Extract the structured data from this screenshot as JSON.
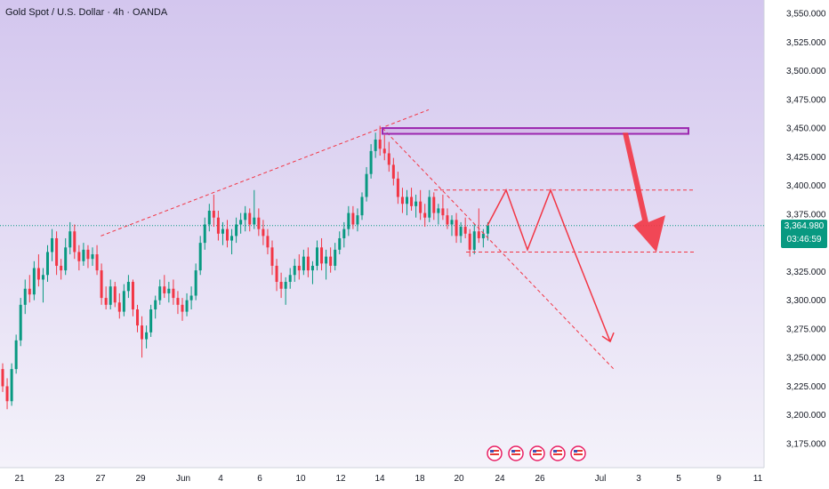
{
  "header": {
    "title": "Gold Spot / U.S. Dollar · 4h · OANDA"
  },
  "price_tag": {
    "price": "3,364.980",
    "countdown": "03:46:59"
  },
  "colors": {
    "up": "#089981",
    "down": "#f23645",
    "accent_zone": "#9c27b0",
    "background_top": "#d3c6ee",
    "background_bottom": "#f4f2fa",
    "projection": "#f23645",
    "price_line": "#089981"
  },
  "event_icons": [
    "us-flag-icon",
    "us-flag-icon",
    "us-flag-icon",
    "us-flag-icon",
    "us-flag-icon"
  ],
  "chart_data": {
    "type": "candlestick",
    "symbol": "XAUUSD",
    "timeframe": "4h",
    "ylim": [
      3160,
      3562
    ],
    "y_ticks": [
      "3,550.000",
      "3,525.000",
      "3,500.000",
      "3,475.000",
      "3,450.000",
      "3,425.000",
      "3,400.000",
      "3,375.000",
      "3,350.000",
      "3,325.000",
      "3,300.000",
      "3,275.000",
      "3,250.000",
      "3,225.000",
      "3,200.000",
      "3,175.000"
    ],
    "x_ticks": [
      "21",
      "23",
      "27",
      "29",
      "Jun",
      "4",
      "6",
      "10",
      "12",
      "14",
      "18",
      "20",
      "24",
      "26",
      "Jul",
      "3",
      "5",
      "9",
      "11"
    ],
    "last_price": 3364.98,
    "ohlc": [
      [
        3240,
        3245,
        3220,
        3225
      ],
      [
        3225,
        3232,
        3205,
        3212
      ],
      [
        3212,
        3245,
        3208,
        3240
      ],
      [
        3240,
        3270,
        3236,
        3265
      ],
      [
        3265,
        3302,
        3260,
        3296
      ],
      [
        3296,
        3318,
        3288,
        3310
      ],
      [
        3310,
        3322,
        3298,
        3305
      ],
      [
        3305,
        3334,
        3300,
        3328
      ],
      [
        3328,
        3340,
        3312,
        3318
      ],
      [
        3318,
        3328,
        3298,
        3322
      ],
      [
        3322,
        3348,
        3316,
        3342
      ],
      [
        3342,
        3362,
        3334,
        3354
      ],
      [
        3354,
        3360,
        3322,
        3330
      ],
      [
        3330,
        3336,
        3318,
        3326
      ],
      [
        3326,
        3354,
        3322,
        3346
      ],
      [
        3346,
        3368,
        3340,
        3360
      ],
      [
        3360,
        3366,
        3336,
        3342
      ],
      [
        3342,
        3348,
        3326,
        3334
      ],
      [
        3334,
        3350,
        3330,
        3344
      ],
      [
        3344,
        3348,
        3328,
        3336
      ],
      [
        3336,
        3346,
        3330,
        3340
      ],
      [
        3340,
        3348,
        3322,
        3326
      ],
      [
        3326,
        3332,
        3296,
        3302
      ],
      [
        3302,
        3312,
        3292,
        3296
      ],
      [
        3296,
        3318,
        3292,
        3312
      ],
      [
        3312,
        3316,
        3294,
        3298
      ],
      [
        3298,
        3306,
        3284,
        3290
      ],
      [
        3290,
        3314,
        3286,
        3308
      ],
      [
        3308,
        3322,
        3302,
        3316
      ],
      [
        3316,
        3318,
        3286,
        3292
      ],
      [
        3292,
        3296,
        3272,
        3278
      ],
      [
        3278,
        3286,
        3250,
        3266
      ],
      [
        3266,
        3278,
        3258,
        3272
      ],
      [
        3272,
        3296,
        3268,
        3292
      ],
      [
        3292,
        3304,
        3284,
        3300
      ],
      [
        3300,
        3318,
        3296,
        3312
      ],
      [
        3312,
        3322,
        3302,
        3306
      ],
      [
        3306,
        3316,
        3298,
        3310
      ],
      [
        3310,
        3318,
        3296,
        3302
      ],
      [
        3302,
        3308,
        3288,
        3296
      ],
      [
        3296,
        3302,
        3282,
        3290
      ],
      [
        3290,
        3306,
        3286,
        3300
      ],
      [
        3300,
        3312,
        3292,
        3304
      ],
      [
        3304,
        3332,
        3300,
        3326
      ],
      [
        3326,
        3356,
        3322,
        3350
      ],
      [
        3350,
        3372,
        3344,
        3366
      ],
      [
        3366,
        3384,
        3360,
        3378
      ],
      [
        3378,
        3392,
        3364,
        3372
      ],
      [
        3372,
        3378,
        3352,
        3358
      ],
      [
        3358,
        3368,
        3348,
        3362
      ],
      [
        3362,
        3370,
        3346,
        3352
      ],
      [
        3352,
        3362,
        3340,
        3356
      ],
      [
        3356,
        3372,
        3350,
        3366
      ],
      [
        3366,
        3376,
        3358,
        3370
      ],
      [
        3370,
        3382,
        3360,
        3376
      ],
      [
        3376,
        3380,
        3360,
        3366
      ],
      [
        3366,
        3396,
        3362,
        3372
      ],
      [
        3372,
        3380,
        3356,
        3362
      ],
      [
        3362,
        3370,
        3348,
        3356
      ],
      [
        3356,
        3362,
        3340,
        3346
      ],
      [
        3346,
        3352,
        3322,
        3330
      ],
      [
        3330,
        3336,
        3308,
        3316
      ],
      [
        3316,
        3324,
        3302,
        3310
      ],
      [
        3310,
        3320,
        3296,
        3316
      ],
      [
        3316,
        3328,
        3310,
        3322
      ],
      [
        3322,
        3336,
        3316,
        3330
      ],
      [
        3330,
        3340,
        3318,
        3326
      ],
      [
        3326,
        3344,
        3322,
        3338
      ],
      [
        3338,
        3346,
        3320,
        3326
      ],
      [
        3326,
        3334,
        3314,
        3330
      ],
      [
        3330,
        3352,
        3326,
        3346
      ],
      [
        3346,
        3354,
        3326,
        3332
      ],
      [
        3332,
        3344,
        3318,
        3338
      ],
      [
        3338,
        3346,
        3324,
        3330
      ],
      [
        3330,
        3350,
        3326,
        3344
      ],
      [
        3344,
        3360,
        3340,
        3354
      ],
      [
        3354,
        3368,
        3346,
        3362
      ],
      [
        3362,
        3382,
        3356,
        3376
      ],
      [
        3376,
        3382,
        3362,
        3366
      ],
      [
        3366,
        3380,
        3360,
        3374
      ],
      [
        3374,
        3394,
        3370,
        3390
      ],
      [
        3390,
        3416,
        3386,
        3410
      ],
      [
        3410,
        3436,
        3406,
        3430
      ],
      [
        3430,
        3446,
        3424,
        3440
      ],
      [
        3440,
        3452,
        3426,
        3432
      ],
      [
        3432,
        3444,
        3422,
        3428
      ],
      [
        3428,
        3438,
        3412,
        3418
      ],
      [
        3418,
        3424,
        3400,
        3406
      ],
      [
        3406,
        3412,
        3384,
        3390
      ],
      [
        3390,
        3398,
        3376,
        3384
      ],
      [
        3384,
        3396,
        3374,
        3390
      ],
      [
        3390,
        3398,
        3378,
        3382
      ],
      [
        3382,
        3392,
        3372,
        3386
      ],
      [
        3386,
        3396,
        3370,
        3376
      ],
      [
        3376,
        3384,
        3364,
        3372
      ],
      [
        3372,
        3396,
        3368,
        3390
      ],
      [
        3390,
        3394,
        3370,
        3376
      ],
      [
        3376,
        3384,
        3366,
        3380
      ],
      [
        3380,
        3392,
        3370,
        3374
      ],
      [
        3374,
        3380,
        3362,
        3366
      ],
      [
        3366,
        3374,
        3356,
        3370
      ],
      [
        3370,
        3376,
        3350,
        3356
      ],
      [
        3356,
        3368,
        3350,
        3364
      ],
      [
        3364,
        3372,
        3354,
        3358
      ],
      [
        3358,
        3362,
        3338,
        3344
      ],
      [
        3344,
        3366,
        3340,
        3360
      ],
      [
        3360,
        3380,
        3350,
        3354
      ],
      [
        3354,
        3362,
        3346,
        3358
      ],
      [
        3358,
        3368,
        3352,
        3365
      ]
    ],
    "annotations": {
      "resistance_zone": [
        3445,
        3450
      ],
      "range_top": 3396,
      "range_bottom": 3342,
      "upper_trendline": [
        [
          8,
          3356
        ],
        [
          78,
          3466
        ]
      ],
      "lower_trendline_target": 3240,
      "zigzag_projection": [
        3365,
        3396,
        3344,
        3396,
        3344
      ],
      "arrow_targets": [
        3264,
        3342
      ]
    }
  }
}
